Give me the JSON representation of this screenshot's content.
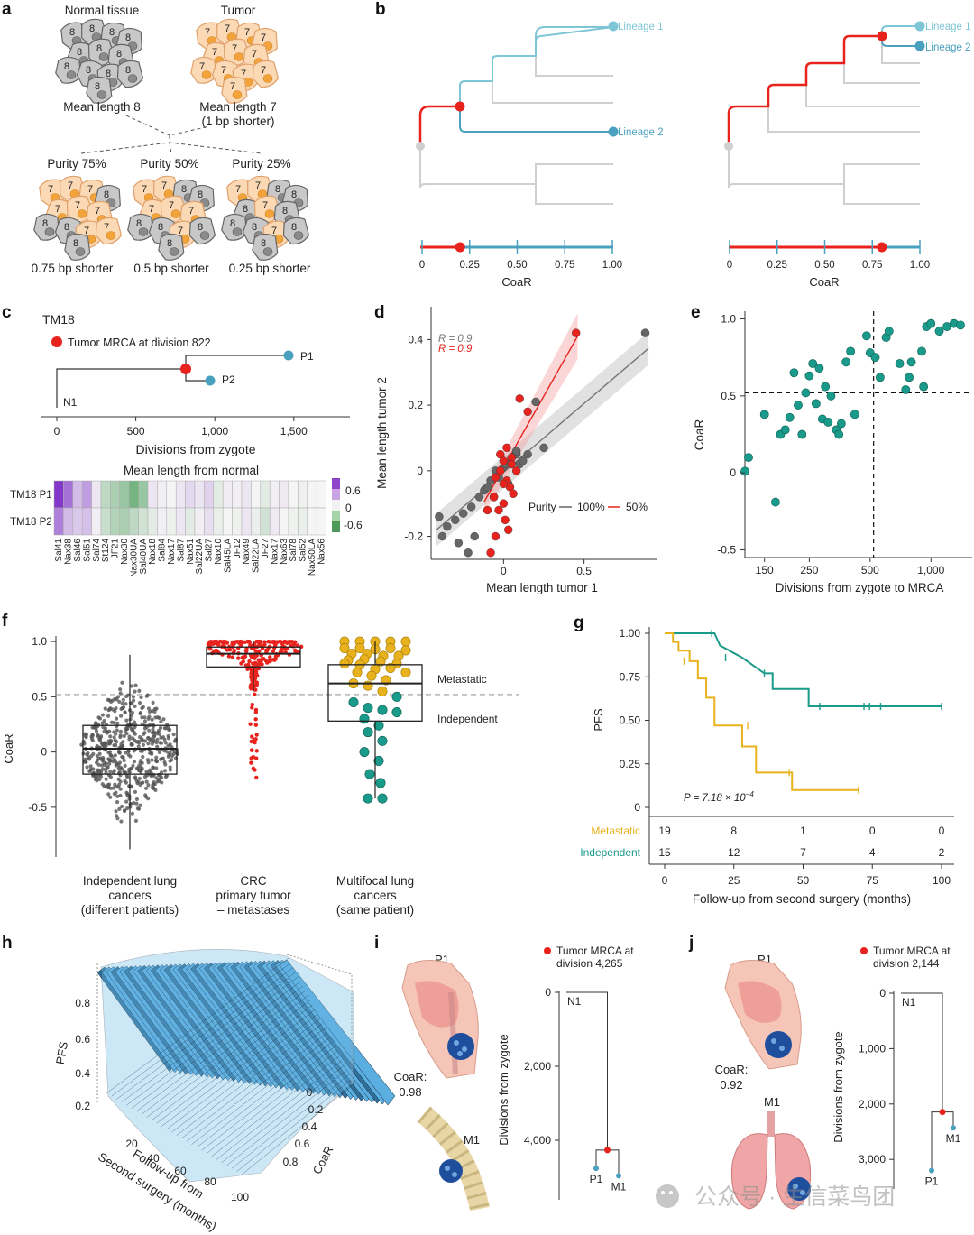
{
  "colors": {
    "teal": "#1a9a8a",
    "red": "#e8231d",
    "gold": "#e8b21e",
    "blue": "#4aa0bf",
    "lightblue": "#7ec6d6",
    "grey": "#666666",
    "lightgrey": "#cfcfcf",
    "orange_cell": "#fbd9b5",
    "grey_cell": "#c8c8c8"
  },
  "panels": {
    "a": "a",
    "b": "b",
    "c": "c",
    "d": "d",
    "e": "e",
    "f": "f",
    "g": "g",
    "h": "h",
    "i": "i",
    "j": "j"
  },
  "panel_a": {
    "normal_title": "Normal tissue",
    "tumor_title": "Tumor",
    "normal_digit": "8",
    "tumor_digit": "7",
    "normal_caption": "Mean length 8",
    "tumor_caption": "Mean length 7",
    "tumor_caption2": "(1 bp shorter)",
    "purities": [
      "Purity 75%",
      "Purity 50%",
      "Purity 25%"
    ],
    "shorter": [
      "0.75 bp shorter",
      "0.5 bp shorter",
      "0.25 bp shorter"
    ]
  },
  "panel_b": {
    "left_lineages": [
      "Lineage 1",
      "Lineage 2"
    ],
    "right_lineages": [
      "Lineage 1",
      "Lineage 2"
    ],
    "ticks": [
      "0",
      "0.25",
      "0.50",
      "0.75",
      "1.00"
    ],
    "xlabel": "CoaR",
    "left_coar": 0.2,
    "right_coar": 0.8
  },
  "panel_c": {
    "title": "TM18",
    "legend": "Tumor MRCA at division 822",
    "nodes": [
      "P1",
      "P2",
      "N1"
    ],
    "ticks": [
      "0",
      "500",
      "1,000",
      "1,500"
    ],
    "xlabel": "Divisions from zygote",
    "heat_title": "Mean length from normal",
    "rows": [
      "TM18 P1",
      "TM18 P2"
    ],
    "legend_ticks": [
      "0.6",
      "0",
      "-0.6"
    ],
    "markers": [
      "Sal41",
      "Nax38",
      "Sal46",
      "Sal51",
      "Sal74",
      "St124",
      "JF21",
      "Nax30",
      "Nax30UA",
      "Sal40UA",
      "Nax18",
      "Sal84",
      "Nax17",
      "Sal87",
      "Nax51",
      "Sal22UA",
      "Sal27",
      "Nax10",
      "Sal45LA",
      "JF12",
      "Nax49",
      "Sal22LA",
      "JF27",
      "Nax17",
      "Nax63",
      "Sal78",
      "Sal52",
      "Nax50LA",
      "Nax56"
    ],
    "p1_values": [
      0.65,
      0.45,
      0.2,
      0.3,
      0.05,
      -0.15,
      -0.2,
      -0.25,
      -0.35,
      -0.25,
      0.05,
      0.02,
      0.0,
      0.05,
      0.1,
      0.05,
      0.12,
      -0.05,
      0.03,
      0.02,
      0.05,
      0.0,
      -0.05,
      0.02,
      0.04,
      0.0,
      -0.02,
      0.0,
      0.0
    ],
    "p2_values": [
      0.4,
      0.2,
      0.15,
      0.18,
      0.02,
      -0.12,
      -0.18,
      -0.2,
      -0.15,
      -0.1,
      -0.05,
      0.02,
      -0.02,
      0.05,
      -0.05,
      0.02,
      0.08,
      -0.03,
      0.0,
      -0.02,
      0.05,
      -0.03,
      -0.1,
      0.04,
      0.0,
      -0.02,
      -0.03,
      0.0,
      0.0
    ]
  },
  "panel_d": {
    "xlabel": "Mean length tumor 1",
    "ylabel": "Mean length tumor 2",
    "r_grey": "R = 0.9",
    "r_red": "R = 0.9",
    "legend_title": "Purity",
    "legend_a": "100%",
    "legend_b": "50%",
    "xticks": [
      "0",
      "0.5"
    ],
    "yticks": [
      "0.4",
      "0.2",
      "0",
      "-0.2"
    ]
  },
  "panel_e": {
    "xlabel": "Divisions from zygote to MRCA",
    "ylabel": "CoaR",
    "xticks": [
      "150",
      "250",
      "500",
      "1,000"
    ],
    "yticks": [
      "1.0",
      "0.5",
      "0",
      "-0.5"
    ]
  },
  "panel_f": {
    "ylabel": "CoaR",
    "yticks": [
      "1.0",
      "0.5",
      "0",
      "-0.5"
    ],
    "groups": [
      {
        "line1": "Independent lung",
        "line2": "cancers",
        "line3": "(different patients)"
      },
      {
        "line1": "CRC",
        "line2": "primary tumor",
        "line3": "– metastases"
      },
      {
        "line1": "Multifocal lung",
        "line2": "cancers",
        "line3": "(same patient)"
      }
    ],
    "label_met": "Metastatic",
    "label_ind": "Independent",
    "threshold": 0.52
  },
  "panel_g": {
    "ylabel": "PFS",
    "xlabel": "Follow-up from second surgery (months)",
    "yticks": [
      "1.00",
      "0.75",
      "0.50",
      "0.25",
      "0"
    ],
    "xticks": [
      "0",
      "25",
      "50",
      "75",
      "100"
    ],
    "pvalue": "P = 7.18 × 10",
    "pexp": "−4",
    "risk_labels": [
      "Metastatic",
      "Independent"
    ],
    "risk_met": [
      "19",
      "8",
      "1",
      "0",
      "0"
    ],
    "risk_ind": [
      "15",
      "12",
      "7",
      "4",
      "2"
    ]
  },
  "panel_h": {
    "zlabel": "PFS",
    "xlabel1": "Follow-up from",
    "xlabel2": "Second surgery (months)",
    "ylabel": "CoaR",
    "zticks": [
      "0.8",
      "0.6",
      "0.4",
      "0.2"
    ],
    "xticks": [
      "20",
      "40",
      "60",
      "80",
      "100"
    ],
    "yticks": [
      "0",
      "0.2",
      "0.4",
      "0.6",
      "0.8"
    ]
  },
  "panel_i": {
    "site_top": "P1",
    "site_bottom": "M1",
    "coar_label": "CoaR:",
    "coar_value": "0.98",
    "legend1": "Tumor MRCA at",
    "legend2": "division 4,265",
    "ylabel": "Divisions from zygote",
    "yticks": [
      "0",
      "2,000",
      "4,000"
    ],
    "nodes": [
      "N1",
      "P1",
      "M1"
    ]
  },
  "panel_j": {
    "site_top": "P1",
    "site_bottom": "M1",
    "coar_label": "CoaR:",
    "coar_value": "0.92",
    "legend1": "Tumor MRCA at",
    "legend2": "division 2,144",
    "ylabel": "Divisions from zygote",
    "yticks": [
      "0",
      "1,000",
      "2,000",
      "3,000"
    ],
    "nodes": [
      "N1",
      "P1",
      "M1"
    ]
  },
  "watermark": "公众号 · 生信菜鸟团",
  "chart_data": [
    {
      "type": "scatter",
      "panel": "d",
      "xlabel": "Mean length tumor 1",
      "ylabel": "Mean length tumor 2",
      "xlim": [
        -0.45,
        0.95
      ],
      "ylim": [
        -0.27,
        0.5
      ],
      "series": [
        {
          "name": "100%",
          "color": "#666666",
          "x": [
            0.88,
            0.2,
            0.25,
            0.08,
            -0.4,
            -0.38,
            -0.35,
            -0.3,
            -0.25,
            -0.2,
            -0.15,
            -0.12,
            -0.1,
            -0.08,
            -0.05,
            -0.03,
            0.0,
            0.02,
            0.05,
            0.08,
            0.1,
            0.12,
            0.15,
            -0.22,
            -0.18,
            -0.28,
            0.03,
            -0.06
          ],
          "y": [
            0.42,
            0.21,
            0.07,
            0.05,
            -0.14,
            -0.2,
            -0.17,
            -0.15,
            -0.13,
            -0.11,
            -0.08,
            -0.06,
            -0.05,
            -0.03,
            0.0,
            -0.02,
            0.01,
            0.02,
            0.04,
            0.06,
            0.02,
            0.03,
            0.05,
            -0.25,
            -0.2,
            -0.22,
            -0.04,
            -0.08
          ]
        },
        {
          "name": "50%",
          "color": "#e8231d",
          "x": [
            0.45,
            0.1,
            0.15,
            0.05,
            0.0,
            -0.02,
            -0.05,
            0.02,
            0.04,
            0.06,
            0.0,
            -0.03,
            0.01,
            0.03,
            -0.05,
            -0.08,
            -0.1,
            -0.02,
            0.02,
            0.05,
            -0.06,
            0.08,
            0.0
          ],
          "y": [
            0.42,
            0.22,
            0.18,
            0.04,
            0.03,
            0.0,
            -0.02,
            -0.03,
            -0.05,
            -0.07,
            -0.1,
            -0.12,
            -0.15,
            -0.18,
            -0.2,
            -0.25,
            -0.12,
            0.05,
            0.07,
            0.02,
            -0.08,
            0.0,
            -0.04
          ]
        }
      ]
    },
    {
      "type": "scatter",
      "panel": "e",
      "xlabel": "Divisions from zygote to MRCA",
      "ylabel": "CoaR",
      "x_scale": "log",
      "xlim": [
        120,
        1600
      ],
      "ylim": [
        -0.55,
        1.05
      ],
      "x": [
        120,
        125,
        150,
        170,
        180,
        190,
        200,
        210,
        220,
        230,
        240,
        250,
        260,
        270,
        280,
        290,
        300,
        310,
        320,
        340,
        350,
        360,
        380,
        400,
        420,
        480,
        500,
        530,
        560,
        600,
        620,
        700,
        750,
        780,
        800,
        900,
        920,
        950,
        1000,
        1100,
        1200,
        1300,
        1400
      ],
      "y": [
        0.01,
        0.1,
        0.38,
        -0.19,
        0.25,
        0.28,
        0.36,
        0.65,
        0.44,
        0.25,
        0.52,
        0.63,
        0.71,
        0.45,
        0.68,
        0.35,
        0.56,
        0.33,
        0.5,
        0.28,
        0.25,
        0.32,
        0.72,
        0.79,
        0.38,
        0.89,
        0.78,
        0.75,
        0.62,
        0.88,
        0.92,
        0.71,
        0.54,
        0.62,
        0.72,
        0.79,
        0.56,
        0.95,
        0.97,
        0.92,
        0.95,
        0.97,
        0.96
      ],
      "vline": 520,
      "hline": 0.52
    },
    {
      "type": "box",
      "panel": "f",
      "ylabel": "CoaR",
      "ylim": [
        -0.95,
        1.05
      ],
      "categories": [
        "Independent lung cancers (different patients)",
        "CRC primary tumor – metastases",
        "Multifocal lung cancers (same patient)"
      ],
      "boxes": [
        {
          "q1": -0.2,
          "median": 0.03,
          "q3": 0.24,
          "min": -0.88,
          "max": 0.88
        },
        {
          "q1": 0.77,
          "median": 0.89,
          "q3": 0.95,
          "min": 0.55,
          "max": 1.0
        },
        {
          "q1": 0.28,
          "median": 0.62,
          "q3": 0.79,
          "min": -0.42,
          "max": 1.0
        }
      ],
      "threshold": 0.52
    },
    {
      "type": "line",
      "panel": "g",
      "xlabel": "Follow-up from second surgery (months)",
      "ylabel": "PFS",
      "xlim": [
        0,
        100
      ],
      "ylim": [
        0,
        1
      ],
      "series": [
        {
          "name": "Independent",
          "color": "#1a9a8a",
          "x": [
            0,
            18,
            20,
            20,
            28,
            28,
            36,
            39,
            39,
            52,
            52,
            100
          ],
          "y": [
            1.0,
            1.0,
            0.93,
            0.93,
            0.86,
            0.86,
            0.77,
            0.77,
            0.68,
            0.68,
            0.58,
            0.58
          ]
        },
        {
          "name": "Metastatic",
          "color": "#e8b21e",
          "x": [
            0,
            3,
            3,
            5,
            5,
            9,
            9,
            12,
            12,
            15,
            15,
            18,
            18,
            28,
            28,
            33,
            33,
            46,
            46,
            70
          ],
          "y": [
            1.0,
            1.0,
            0.95,
            0.95,
            0.9,
            0.9,
            0.84,
            0.84,
            0.74,
            0.74,
            0.63,
            0.63,
            0.47,
            0.47,
            0.35,
            0.35,
            0.2,
            0.2,
            0.1,
            0.1
          ]
        }
      ]
    }
  ]
}
